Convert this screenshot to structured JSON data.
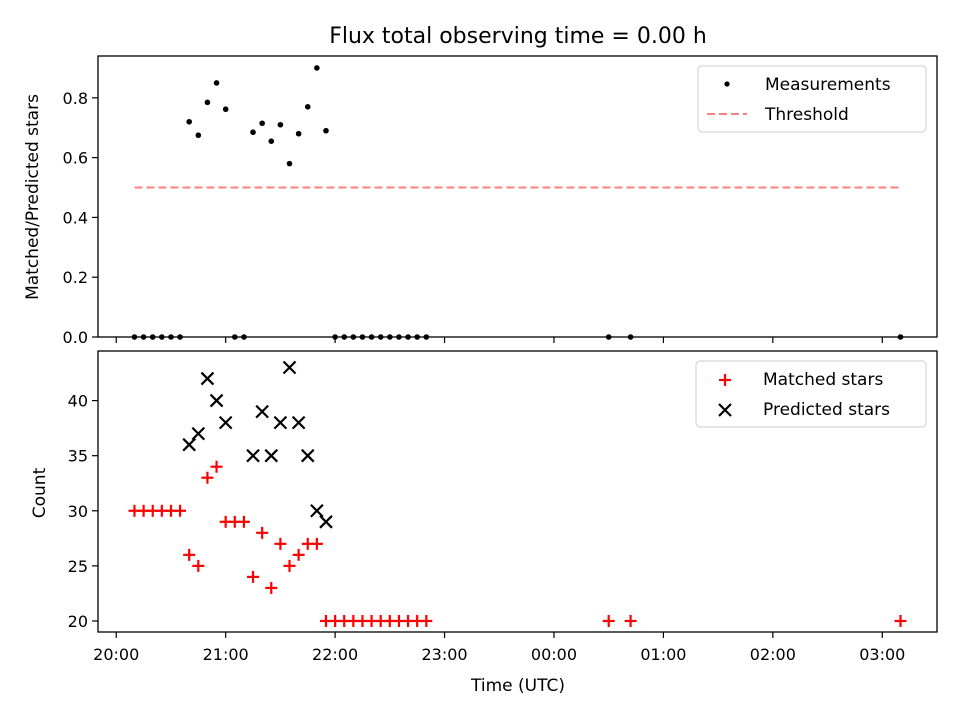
{
  "chart_data": [
    {
      "type": "scatter",
      "title": "Flux total observing time = 0.00 h",
      "xlabel": "",
      "ylabel": "Matched/Predicted stars",
      "xlim": [
        "19:50",
        "03:30"
      ],
      "ylim": [
        0,
        0.94
      ],
      "yticks": [
        0.0,
        0.2,
        0.4,
        0.6,
        0.8
      ],
      "yticklabels": [
        "0.0",
        "0.2",
        "0.4",
        "0.6",
        "0.8"
      ],
      "legend_position": "top-right",
      "series": [
        {
          "name": "Measurements",
          "style": "dot",
          "color": "#000000",
          "x": [
            "20:10",
            "20:15",
            "20:20",
            "20:25",
            "20:30",
            "20:35",
            "20:40",
            "20:45",
            "20:50",
            "20:55",
            "21:00",
            "21:05",
            "21:10",
            "21:15",
            "21:20",
            "21:25",
            "21:30",
            "21:35",
            "21:40",
            "21:45",
            "21:50",
            "21:55",
            "22:00",
            "22:05",
            "22:10",
            "22:15",
            "22:20",
            "22:25",
            "22:30",
            "22:35",
            "22:40",
            "22:45",
            "22:50",
            "00:30",
            "00:42",
            "03:10"
          ],
          "y": [
            0,
            0,
            0,
            0,
            0,
            0,
            0.72,
            0.675,
            0.785,
            0.85,
            0.762,
            0,
            0,
            0.685,
            0.715,
            0.655,
            0.71,
            0.58,
            0.68,
            0.77,
            0.9,
            0.69,
            0,
            0,
            0,
            0,
            0,
            0,
            0,
            0,
            0,
            0,
            0,
            0,
            0,
            0
          ]
        },
        {
          "name": "Threshold",
          "style": "dashed-line",
          "color": "#ff7f7f",
          "x": [
            "20:10",
            "03:10"
          ],
          "y": [
            0.5,
            0.5
          ]
        }
      ]
    },
    {
      "type": "scatter",
      "title": "",
      "xlabel": "Time (UTC)",
      "ylabel": "Count",
      "xlim": [
        "19:50",
        "03:30"
      ],
      "ylim": [
        19,
        44.5
      ],
      "yticks": [
        20,
        25,
        30,
        35,
        40
      ],
      "yticklabels": [
        "20",
        "25",
        "30",
        "35",
        "40"
      ],
      "xticks": [
        "20:00",
        "21:00",
        "22:00",
        "23:00",
        "00:00",
        "01:00",
        "02:00",
        "03:00"
      ],
      "legend_position": "top-right",
      "series": [
        {
          "name": "Matched stars",
          "style": "plus",
          "color": "#ff0000",
          "x": [
            "20:10",
            "20:15",
            "20:20",
            "20:25",
            "20:30",
            "20:35",
            "20:40",
            "20:45",
            "20:50",
            "20:55",
            "21:00",
            "21:05",
            "21:10",
            "21:15",
            "21:20",
            "21:25",
            "21:30",
            "21:35",
            "21:40",
            "21:45",
            "21:50",
            "21:55",
            "22:00",
            "22:05",
            "22:10",
            "22:15",
            "22:20",
            "22:25",
            "22:30",
            "22:35",
            "22:40",
            "22:45",
            "22:50",
            "00:30",
            "00:42",
            "03:10"
          ],
          "y": [
            30,
            30,
            30,
            30,
            30,
            30,
            26,
            25,
            33,
            34,
            29,
            29,
            29,
            24,
            28,
            23,
            27,
            25,
            26,
            27,
            27,
            20,
            20,
            20,
            20,
            20,
            20,
            20,
            20,
            20,
            20,
            20,
            20,
            20,
            20,
            20
          ]
        },
        {
          "name": "Predicted stars",
          "style": "x",
          "color": "#000000",
          "x": [
            "20:40",
            "20:45",
            "20:50",
            "20:55",
            "21:00",
            "21:15",
            "21:20",
            "21:25",
            "21:30",
            "21:35",
            "21:40",
            "21:45",
            "21:50",
            "21:55"
          ],
          "y": [
            36,
            37,
            42,
            40,
            38,
            35,
            39,
            35,
            38,
            43,
            38,
            35,
            30,
            29
          ]
        }
      ]
    }
  ]
}
